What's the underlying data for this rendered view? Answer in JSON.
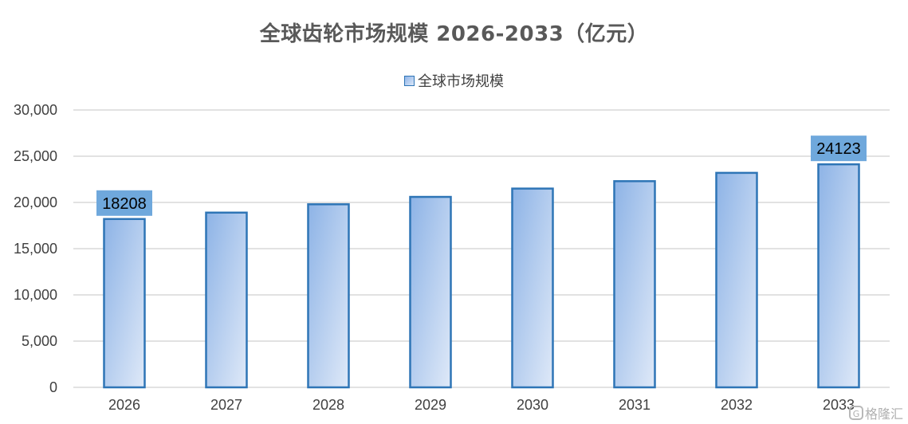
{
  "chart_data": {
    "type": "bar",
    "title": "全球齿轮市场规模 2026-2033（亿元）",
    "categories": [
      "2026",
      "2027",
      "2028",
      "2029",
      "2030",
      "2031",
      "2032",
      "2033"
    ],
    "series": [
      {
        "name": "全球市场规模",
        "values": [
          18208,
          18900,
          19800,
          20600,
          21500,
          22300,
          23200,
          24123
        ]
      }
    ],
    "data_labels": {
      "0": "18208",
      "7": "24123"
    },
    "ylim": [
      0,
      30000
    ],
    "yticks": [
      "0",
      "5,000",
      "10,000",
      "15,000",
      "20,000",
      "25,000",
      "30,000"
    ],
    "xlabel": "",
    "ylabel": "",
    "grid": true,
    "legend_position": "top",
    "colors": {
      "bar_top": "#8db3e6",
      "bar_bottom": "#dfe9f8",
      "bar_border": "#2e75b6",
      "label_bg": "#6fa8dc",
      "grid": "#d9d9d9"
    }
  },
  "watermark": {
    "text": "格隆汇",
    "icon": "G"
  }
}
